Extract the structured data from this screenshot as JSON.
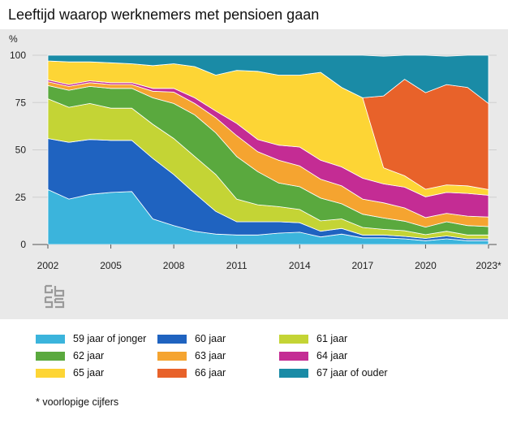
{
  "title": "Leeftijd waarop werknemers met pensioen gaan",
  "footnote": "* voorlopige cijfers",
  "logo": "cbs-logo",
  "chart_data": {
    "type": "area",
    "stacked": true,
    "unit_label": "%",
    "ylim": [
      0,
      100
    ],
    "yticks": [
      0,
      25,
      50,
      75,
      100
    ],
    "x": [
      "2002",
      "2003",
      "2004",
      "2005",
      "2006",
      "2007",
      "2008",
      "2009",
      "2010",
      "2011",
      "2012",
      "2013",
      "2014",
      "2015",
      "2016",
      "2017",
      "2018",
      "2019",
      "2020",
      "2021",
      "2022",
      "2023*"
    ],
    "xtick_labels": [
      "2002",
      "2005",
      "2008",
      "2011",
      "2014",
      "2017",
      "2020",
      "2023*"
    ],
    "legend_position": "bottom",
    "series": [
      {
        "name": "59 jaar of jonger",
        "color": "#3bb4dc",
        "values": [
          29,
          24,
          26.5,
          27.5,
          28,
          13.5,
          10,
          7,
          5.5,
          5,
          5,
          6,
          6.5,
          4,
          5.5,
          3.5,
          3.5,
          3,
          2,
          3,
          2,
          2
        ]
      },
      {
        "name": "60 jaar",
        "color": "#1f63c0",
        "values": [
          27,
          30,
          29,
          27.5,
          27,
          32,
          27,
          20,
          12,
          7,
          7,
          6,
          5,
          3,
          3,
          1.5,
          1.5,
          1.3,
          1.2,
          1.5,
          1,
          1
        ]
      },
      {
        "name": "61 jaar",
        "color": "#c4d435",
        "values": [
          21,
          18.5,
          19,
          17,
          17,
          18,
          19,
          19.5,
          19.5,
          12,
          9,
          8,
          7,
          5.5,
          5,
          4,
          3,
          3,
          2,
          2.5,
          2,
          2
        ]
      },
      {
        "name": "62 jaar",
        "color": "#5aa93e",
        "values": [
          7,
          9,
          9,
          10.5,
          10.5,
          14,
          18.5,
          22,
          22,
          22.5,
          17.5,
          12.5,
          12,
          12,
          8,
          7,
          6,
          5,
          4,
          5,
          5,
          4.5
        ]
      },
      {
        "name": "63 jaar",
        "color": "#f5a430",
        "values": [
          2,
          2,
          2,
          2,
          2,
          3.5,
          6,
          6,
          8,
          11,
          10.5,
          12,
          11,
          10,
          9.5,
          8,
          8,
          7,
          5,
          4.5,
          5,
          5
        ]
      },
      {
        "name": "64 jaar",
        "color": "#c42c94",
        "values": [
          1,
          1,
          1,
          1,
          1,
          1.5,
          2,
          3,
          3.5,
          6.5,
          6.5,
          8,
          10,
          10,
          10,
          11,
          10,
          11,
          11,
          11,
          12,
          11.5
        ]
      },
      {
        "name": "65 jaar",
        "color": "#fdd535",
        "values": [
          10,
          12,
          10,
          10.5,
          10,
          12,
          13,
          16.5,
          19,
          28,
          36,
          37,
          38,
          46.5,
          42,
          42.5,
          8.5,
          6,
          4,
          4,
          4,
          3
        ]
      },
      {
        "name": "66 jaar",
        "color": "#e8622a",
        "values": [
          0,
          0,
          0,
          0,
          0,
          0,
          0,
          0,
          0,
          0,
          0,
          0,
          0,
          0,
          0,
          0,
          38,
          51,
          51,
          53,
          52,
          45.5
        ]
      },
      {
        "name": "67 jaar of ouder",
        "color": "#1a8ba6",
        "values": [
          3,
          3.5,
          3.5,
          4,
          4.5,
          5.5,
          4.5,
          6,
          10.5,
          8,
          8.5,
          10.5,
          10.5,
          9,
          17,
          22.5,
          21,
          12.7,
          19.8,
          15,
          17,
          25.5
        ]
      }
    ]
  }
}
